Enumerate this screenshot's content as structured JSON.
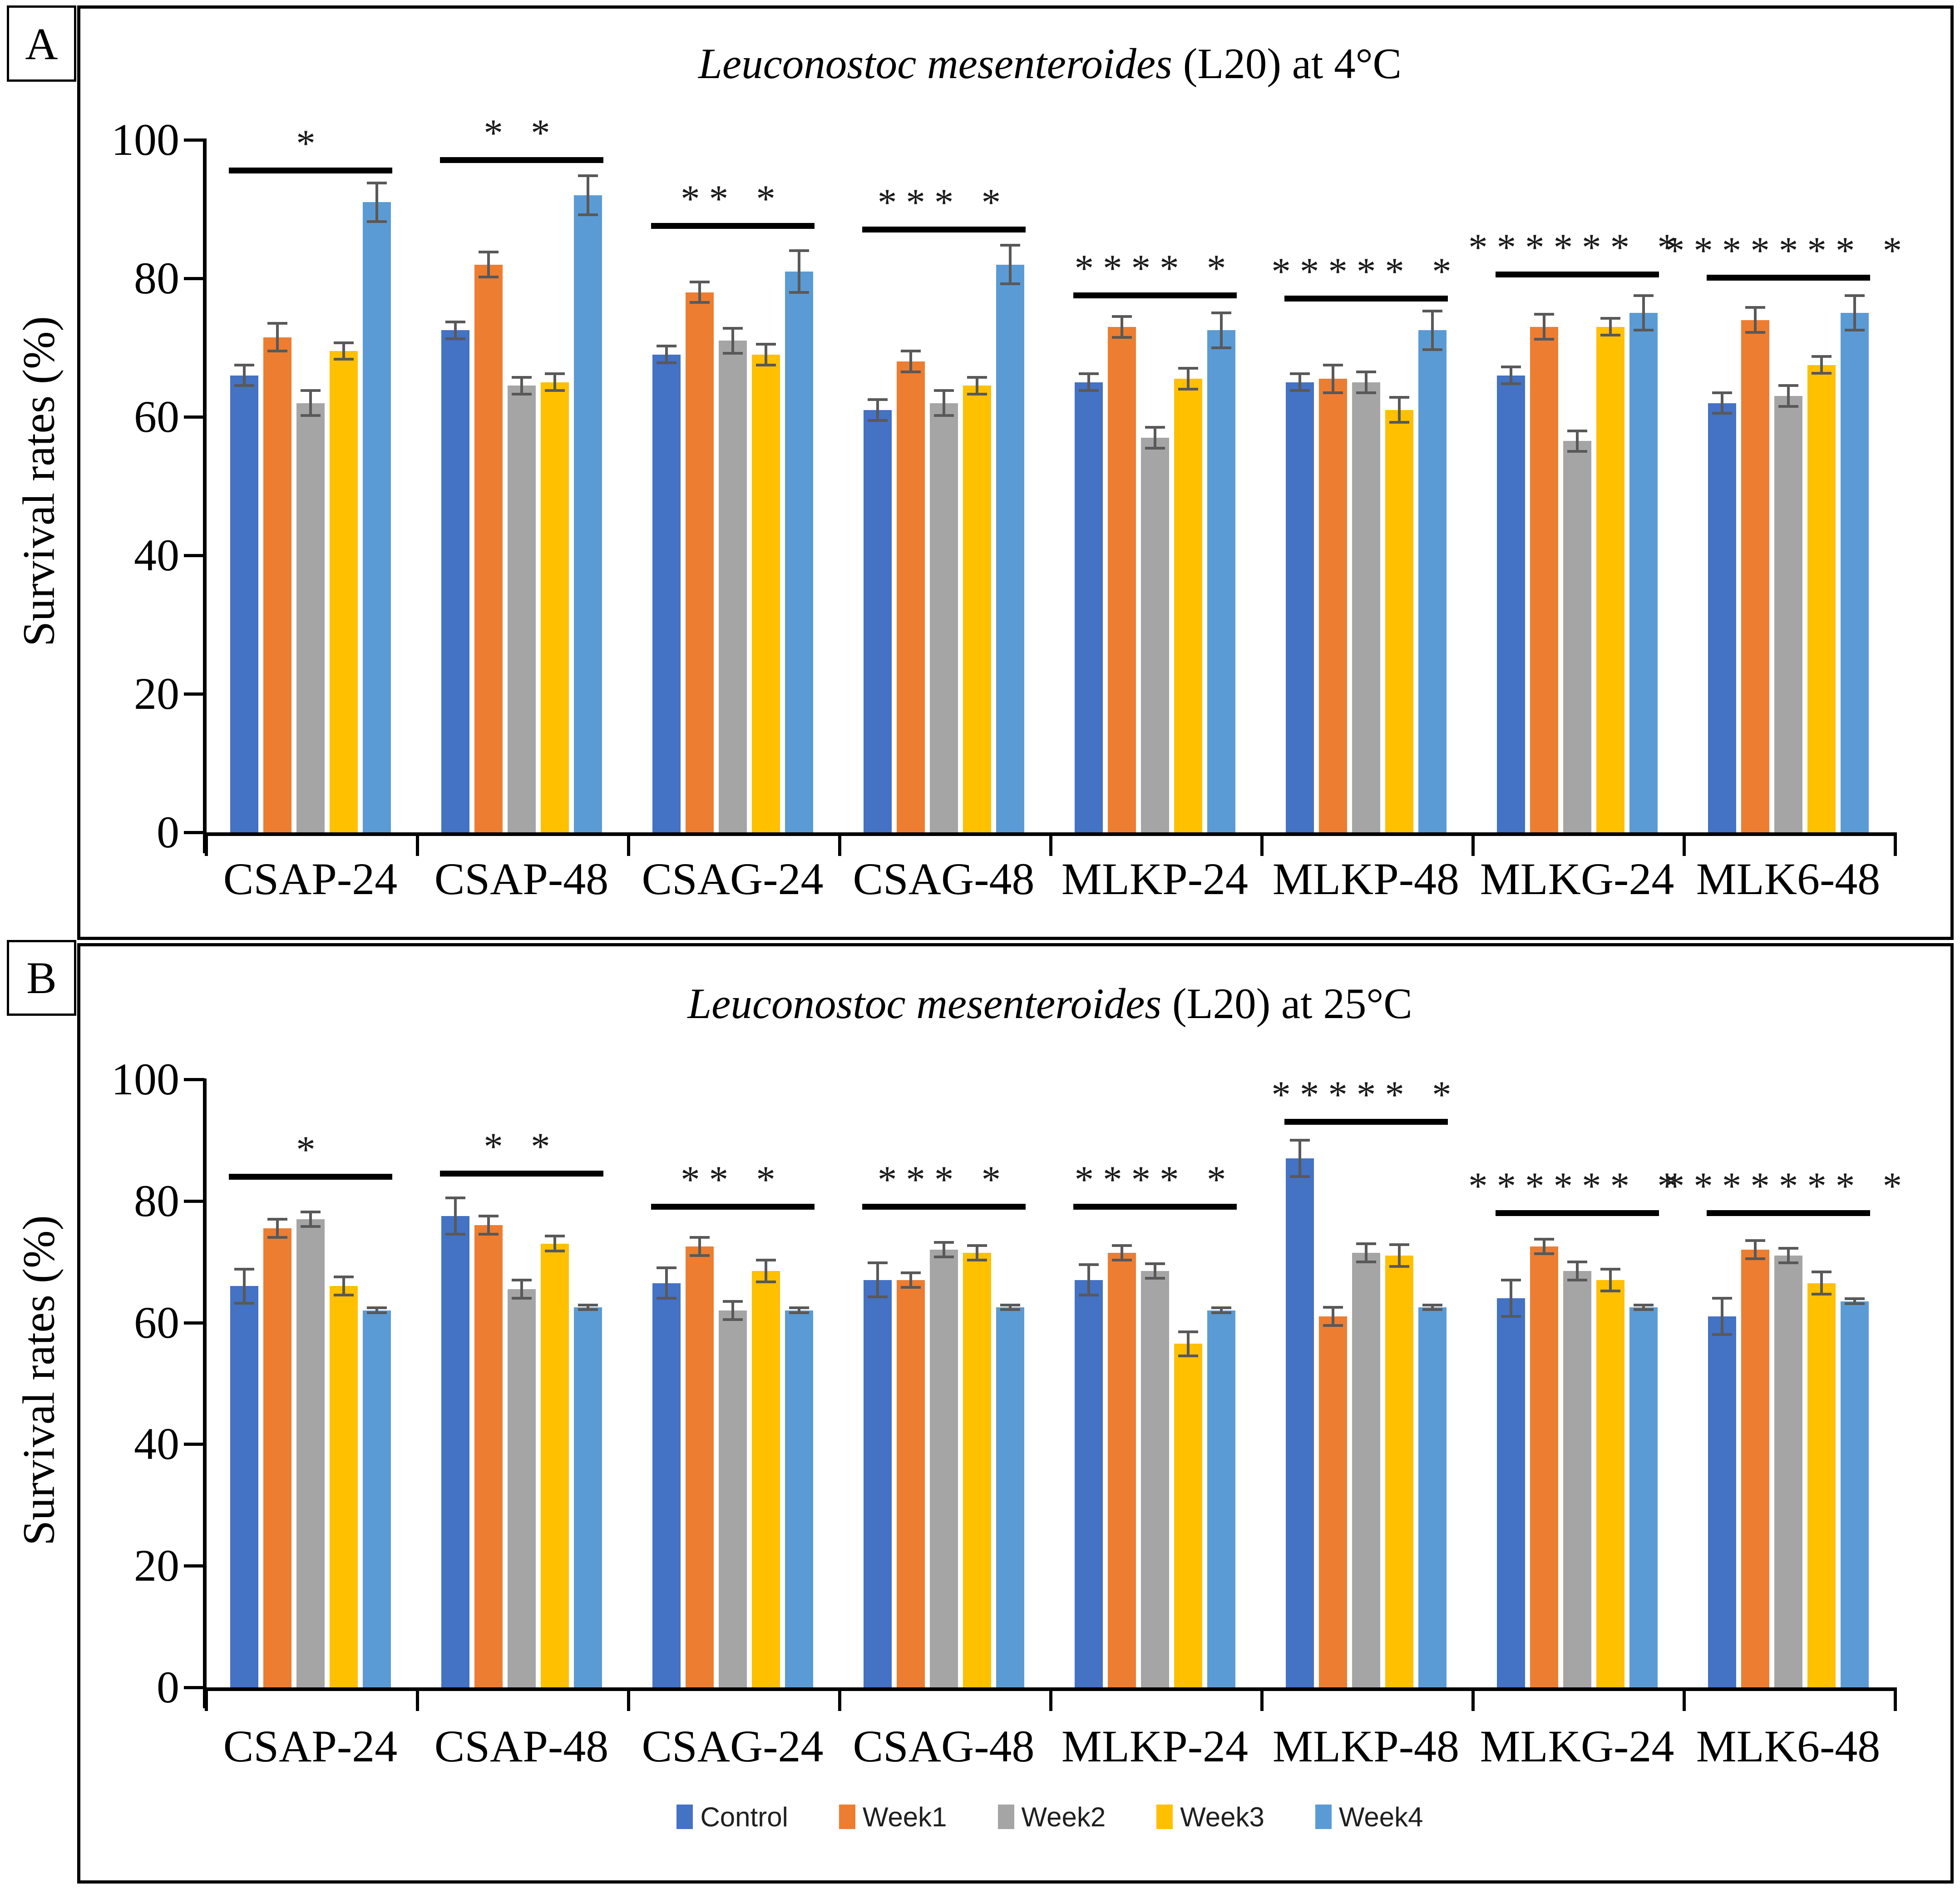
{
  "figure": {
    "panel_tags": [
      "A",
      "B"
    ],
    "ylabel": "Survival rates (%)",
    "legend": [
      {
        "label": "Control",
        "color": "#4472C4"
      },
      {
        "label": "Week1",
        "color": "#ED7D31"
      },
      {
        "label": "Week2",
        "color": "#A5A5A5"
      },
      {
        "label": "Week3",
        "color": "#FFC000"
      },
      {
        "label": "Week4",
        "color": "#5B9BD5"
      }
    ],
    "legend_position": "bottom-center"
  },
  "chart_data": [
    {
      "type": "bar",
      "panel": "A",
      "title_italic": "Leuconostoc mesenteroides",
      "title_regular": " (L20) at 4°C",
      "xlabel": "",
      "ylabel": "Survival rates (%)",
      "ylim": [
        0,
        100
      ],
      "yticks": [
        0,
        20,
        40,
        60,
        80,
        100
      ],
      "grid": false,
      "categories": [
        "CSAP-24",
        "CSAP-48",
        "CSAG-24",
        "CSAG-48",
        "MLKP-24",
        "MLKP-48",
        "MLKG-24",
        "MLK6-48"
      ],
      "series": [
        {
          "name": "Control",
          "color": "#4472C4",
          "values": [
            66,
            72.5,
            69,
            61,
            65,
            65,
            66,
            62
          ],
          "errors": [
            1.5,
            1.2,
            1.2,
            1.5,
            1.2,
            1.2,
            1.2,
            1.5
          ]
        },
        {
          "name": "Week1",
          "color": "#ED7D31",
          "values": [
            71.5,
            82,
            78,
            68,
            73,
            65.5,
            73,
            74
          ],
          "errors": [
            2,
            1.8,
            1.5,
            1.5,
            1.5,
            2,
            1.8,
            1.8
          ]
        },
        {
          "name": "Week2",
          "color": "#A5A5A5",
          "values": [
            62,
            64.5,
            71,
            62,
            57,
            65,
            56.5,
            63
          ],
          "errors": [
            1.8,
            1.2,
            1.8,
            1.8,
            1.5,
            1.5,
            1.5,
            1.5
          ]
        },
        {
          "name": "Week3",
          "color": "#FFC000",
          "values": [
            69.5,
            65,
            69,
            64.5,
            65.5,
            61,
            73,
            67.5
          ],
          "errors": [
            1.2,
            1.2,
            1.5,
            1.2,
            1.5,
            1.8,
            1.2,
            1.2
          ]
        },
        {
          "name": "Week4",
          "color": "#5B9BD5",
          "values": [
            91,
            92,
            81,
            82,
            72.5,
            72.5,
            75,
            75
          ],
          "errors": [
            2.8,
            2.8,
            3,
            2.8,
            2.5,
            2.8,
            2.5,
            2.5
          ]
        }
      ],
      "significance": [
        {
          "group": "CSAP-24",
          "stars": "*",
          "y": 96
        },
        {
          "group": "CSAP-48",
          "stars": "* *",
          "y": 97.5
        },
        {
          "group": "CSAG-24",
          "stars": "** *",
          "y": 88
        },
        {
          "group": "CSAG-48",
          "stars": "*** *",
          "y": 87.5
        },
        {
          "group": "MLKP-24",
          "stars": "**** *",
          "y": 78
        },
        {
          "group": "MLKP-48",
          "stars": "***** *",
          "y": 77.5
        },
        {
          "group": "MLKG-24",
          "stars": "****** *",
          "y": 81
        },
        {
          "group": "MLK6-48",
          "stars": "******* *",
          "y": 80.5
        }
      ]
    },
    {
      "type": "bar",
      "panel": "B",
      "title_italic": "Leuconostoc mesenteroides",
      "title_regular": " (L20) at 25°C",
      "xlabel": "",
      "ylabel": "Survival rates (%)",
      "ylim": [
        0,
        100
      ],
      "yticks": [
        0,
        20,
        40,
        60,
        80,
        100
      ],
      "grid": false,
      "categories": [
        "CSAP-24",
        "CSAP-48",
        "CSAG-24",
        "CSAG-48",
        "MLKP-24",
        "MLKP-48",
        "MLKG-24",
        "MLK6-48"
      ],
      "series": [
        {
          "name": "Control",
          "color": "#4472C4",
          "values": [
            66,
            77.5,
            66.5,
            67,
            67,
            87,
            64,
            61
          ],
          "errors": [
            2.8,
            3,
            2.5,
            2.8,
            2.5,
            3,
            3,
            3
          ]
        },
        {
          "name": "Week1",
          "color": "#ED7D31",
          "values": [
            75.5,
            76,
            72.5,
            67,
            71.5,
            61,
            72.5,
            72
          ],
          "errors": [
            1.5,
            1.5,
            1.5,
            1.2,
            1.2,
            1.5,
            1.2,
            1.5
          ]
        },
        {
          "name": "Week2",
          "color": "#A5A5A5",
          "values": [
            77,
            65.5,
            62,
            72,
            68.5,
            71.5,
            68.5,
            71
          ],
          "errors": [
            1.2,
            1.5,
            1.5,
            1.2,
            1.2,
            1.5,
            1.5,
            1.2
          ]
        },
        {
          "name": "Week3",
          "color": "#FFC000",
          "values": [
            66,
            73,
            68.5,
            71.5,
            56.5,
            71,
            67,
            66.5
          ],
          "errors": [
            1.5,
            1.2,
            1.8,
            1.2,
            2,
            1.8,
            1.8,
            1.8
          ]
        },
        {
          "name": "Week4",
          "color": "#5B9BD5",
          "values": [
            62,
            62.5,
            62,
            62.5,
            62,
            62.5,
            62.5,
            63.5
          ],
          "errors": [
            0.4,
            0.4,
            0.4,
            0.4,
            0.4,
            0.4,
            0.4,
            0.4
          ]
        }
      ],
      "significance": [
        {
          "group": "CSAP-24",
          "stars": "*",
          "y": 84.5
        },
        {
          "group": "CSAP-48",
          "stars": "* *",
          "y": 85
        },
        {
          "group": "CSAG-24",
          "stars": "** *",
          "y": 79.5
        },
        {
          "group": "CSAG-48",
          "stars": "*** *",
          "y": 79.5
        },
        {
          "group": "MLKP-24",
          "stars": "**** *",
          "y": 79.5
        },
        {
          "group": "MLKP-48",
          "stars": "***** *",
          "y": 93.5
        },
        {
          "group": "MLKG-24",
          "stars": "****** *",
          "y": 78.5
        },
        {
          "group": "MLK6-48",
          "stars": "******* *",
          "y": 78.5
        }
      ]
    }
  ]
}
